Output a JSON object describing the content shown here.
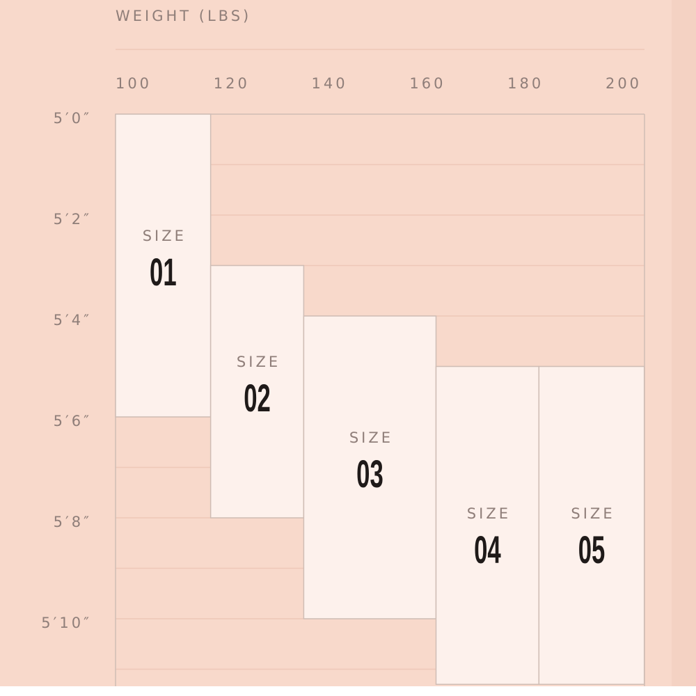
{
  "chart_data": {
    "type": "size-range-chart",
    "xlabel": "WEIGHT (LBS)",
    "x_ticks": [
      "100",
      "120",
      "140",
      "160",
      "180",
      "200"
    ],
    "x_tick_values": [
      100,
      120,
      140,
      160,
      180,
      200
    ],
    "y_ticks": [
      "5′0″",
      "5′2″",
      "5′4″",
      "5′6″",
      "5′8″",
      "5′10″"
    ],
    "y_tick_values_inches": [
      60,
      62,
      64,
      66,
      68,
      70
    ],
    "ylim_inches": [
      60,
      71.3
    ],
    "grid": "horizontal lines every inch",
    "sizes": [
      {
        "label": "SIZE",
        "number": "01",
        "weight_range": [
          96.5,
          116
        ],
        "height_range_inches": [
          60,
          66
        ]
      },
      {
        "label": "SIZE",
        "number": "02",
        "weight_range": [
          116,
          135
        ],
        "height_range_inches": [
          63,
          68
        ]
      },
      {
        "label": "SIZE",
        "number": "03",
        "weight_range": [
          135,
          162
        ],
        "height_range_inches": [
          64,
          70
        ]
      },
      {
        "label": "SIZE",
        "number": "04",
        "weight_range": [
          162,
          183
        ],
        "height_range_inches": [
          65,
          71.3
        ]
      },
      {
        "label": "SIZE",
        "number": "05",
        "weight_range": [
          183,
          204.5
        ],
        "height_range_inches": [
          65,
          71.3
        ]
      }
    ],
    "colors": {
      "background": "#f8d9cb",
      "size_box": "#fdf1ec",
      "grid_line": "#eec8b8",
      "box_border": "#cfbdb5",
      "label_text": "#8f7e79",
      "number_text": "#1f1a19"
    }
  }
}
